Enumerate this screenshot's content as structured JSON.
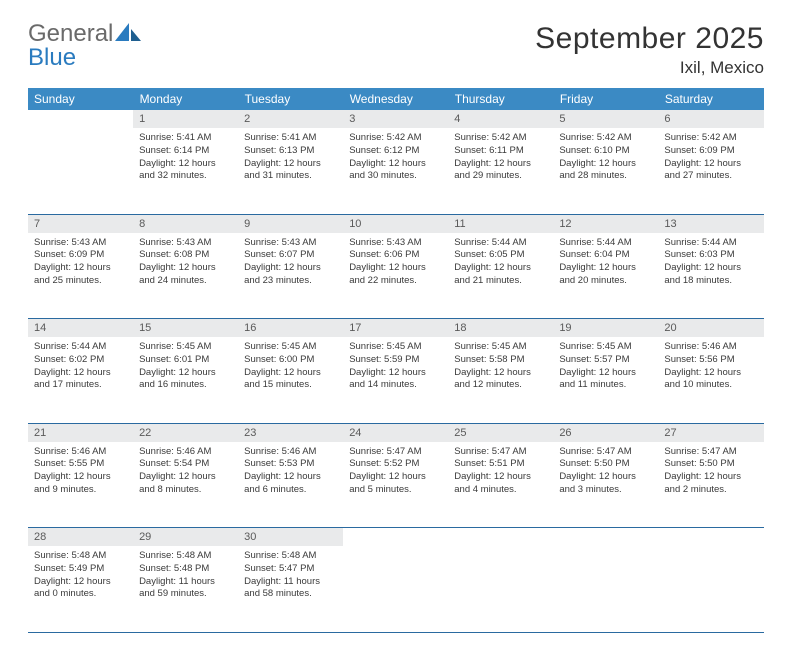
{
  "brand": {
    "part1": "General",
    "part2": "Blue"
  },
  "title": "September 2025",
  "location": "Ixil, Mexico",
  "weekdays": [
    "Sunday",
    "Monday",
    "Tuesday",
    "Wednesday",
    "Thursday",
    "Friday",
    "Saturday"
  ],
  "colors": {
    "header_bg": "#3b8ac4",
    "header_fg": "#ffffff",
    "daynum_bg": "#e9eaeb",
    "rule": "#2a6aa0",
    "brand_gray": "#6a6a6a",
    "brand_blue": "#2a7bbf"
  },
  "weeks": [
    [
      null,
      {
        "n": "1",
        "sr": "5:41 AM",
        "ss": "6:14 PM",
        "dl": "12 hours and 32 minutes."
      },
      {
        "n": "2",
        "sr": "5:41 AM",
        "ss": "6:13 PM",
        "dl": "12 hours and 31 minutes."
      },
      {
        "n": "3",
        "sr": "5:42 AM",
        "ss": "6:12 PM",
        "dl": "12 hours and 30 minutes."
      },
      {
        "n": "4",
        "sr": "5:42 AM",
        "ss": "6:11 PM",
        "dl": "12 hours and 29 minutes."
      },
      {
        "n": "5",
        "sr": "5:42 AM",
        "ss": "6:10 PM",
        "dl": "12 hours and 28 minutes."
      },
      {
        "n": "6",
        "sr": "5:42 AM",
        "ss": "6:09 PM",
        "dl": "12 hours and 27 minutes."
      }
    ],
    [
      {
        "n": "7",
        "sr": "5:43 AM",
        "ss": "6:09 PM",
        "dl": "12 hours and 25 minutes."
      },
      {
        "n": "8",
        "sr": "5:43 AM",
        "ss": "6:08 PM",
        "dl": "12 hours and 24 minutes."
      },
      {
        "n": "9",
        "sr": "5:43 AM",
        "ss": "6:07 PM",
        "dl": "12 hours and 23 minutes."
      },
      {
        "n": "10",
        "sr": "5:43 AM",
        "ss": "6:06 PM",
        "dl": "12 hours and 22 minutes."
      },
      {
        "n": "11",
        "sr": "5:44 AM",
        "ss": "6:05 PM",
        "dl": "12 hours and 21 minutes."
      },
      {
        "n": "12",
        "sr": "5:44 AM",
        "ss": "6:04 PM",
        "dl": "12 hours and 20 minutes."
      },
      {
        "n": "13",
        "sr": "5:44 AM",
        "ss": "6:03 PM",
        "dl": "12 hours and 18 minutes."
      }
    ],
    [
      {
        "n": "14",
        "sr": "5:44 AM",
        "ss": "6:02 PM",
        "dl": "12 hours and 17 minutes."
      },
      {
        "n": "15",
        "sr": "5:45 AM",
        "ss": "6:01 PM",
        "dl": "12 hours and 16 minutes."
      },
      {
        "n": "16",
        "sr": "5:45 AM",
        "ss": "6:00 PM",
        "dl": "12 hours and 15 minutes."
      },
      {
        "n": "17",
        "sr": "5:45 AM",
        "ss": "5:59 PM",
        "dl": "12 hours and 14 minutes."
      },
      {
        "n": "18",
        "sr": "5:45 AM",
        "ss": "5:58 PM",
        "dl": "12 hours and 12 minutes."
      },
      {
        "n": "19",
        "sr": "5:45 AM",
        "ss": "5:57 PM",
        "dl": "12 hours and 11 minutes."
      },
      {
        "n": "20",
        "sr": "5:46 AM",
        "ss": "5:56 PM",
        "dl": "12 hours and 10 minutes."
      }
    ],
    [
      {
        "n": "21",
        "sr": "5:46 AM",
        "ss": "5:55 PM",
        "dl": "12 hours and 9 minutes."
      },
      {
        "n": "22",
        "sr": "5:46 AM",
        "ss": "5:54 PM",
        "dl": "12 hours and 8 minutes."
      },
      {
        "n": "23",
        "sr": "5:46 AM",
        "ss": "5:53 PM",
        "dl": "12 hours and 6 minutes."
      },
      {
        "n": "24",
        "sr": "5:47 AM",
        "ss": "5:52 PM",
        "dl": "12 hours and 5 minutes."
      },
      {
        "n": "25",
        "sr": "5:47 AM",
        "ss": "5:51 PM",
        "dl": "12 hours and 4 minutes."
      },
      {
        "n": "26",
        "sr": "5:47 AM",
        "ss": "5:50 PM",
        "dl": "12 hours and 3 minutes."
      },
      {
        "n": "27",
        "sr": "5:47 AM",
        "ss": "5:50 PM",
        "dl": "12 hours and 2 minutes."
      }
    ],
    [
      {
        "n": "28",
        "sr": "5:48 AM",
        "ss": "5:49 PM",
        "dl": "12 hours and 0 minutes."
      },
      {
        "n": "29",
        "sr": "5:48 AM",
        "ss": "5:48 PM",
        "dl": "11 hours and 59 minutes."
      },
      {
        "n": "30",
        "sr": "5:48 AM",
        "ss": "5:47 PM",
        "dl": "11 hours and 58 minutes."
      },
      null,
      null,
      null,
      null
    ]
  ],
  "labels": {
    "sunrise": "Sunrise:",
    "sunset": "Sunset:",
    "daylight": "Daylight:"
  }
}
